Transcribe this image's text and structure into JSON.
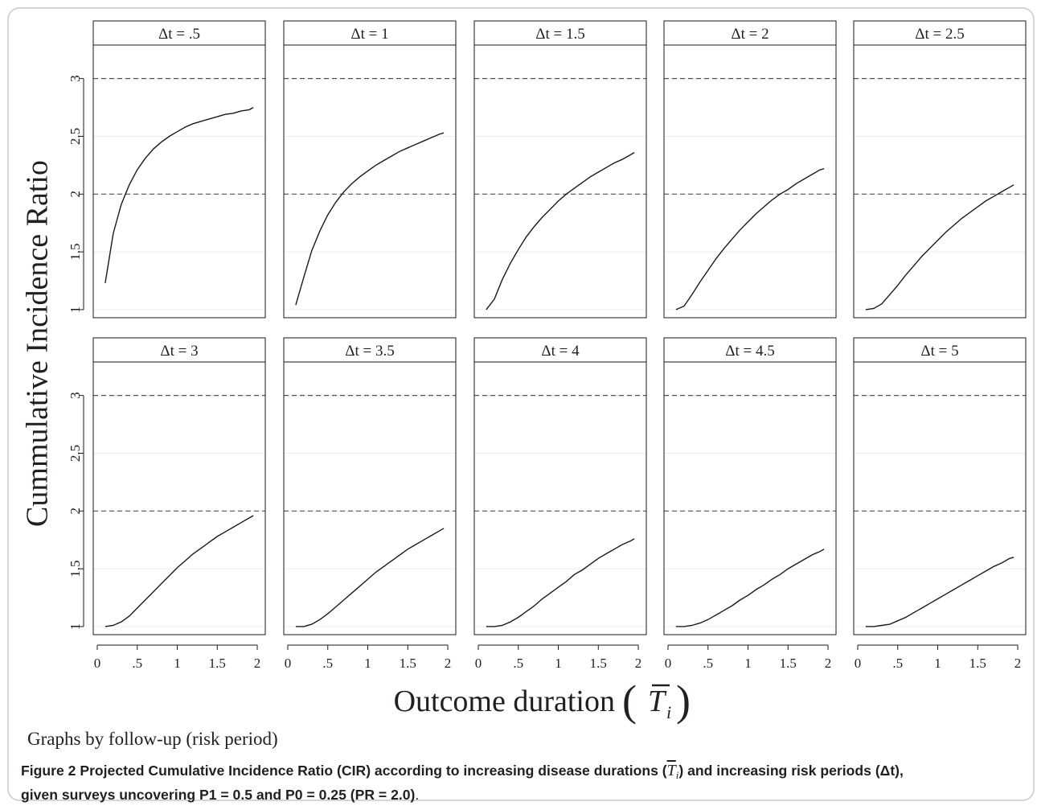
{
  "chart_data": {
    "type": "line",
    "facet_by": "follow-up (risk period)",
    "ylabel": "Cummulative Incidence Ratio",
    "xlabel": "Outcome duration",
    "xlabel_symbol": "T",
    "xlabel_subscript": "i",
    "note": "Graphs by follow-up (risk period)",
    "xticks": [
      "0",
      ".5",
      "1",
      "1.5",
      "2"
    ],
    "xtick_values": [
      0,
      0.5,
      1,
      1.5,
      2
    ],
    "yticks": [
      "1",
      "1.5",
      "2",
      "2.5",
      "3"
    ],
    "ytick_values": [
      1,
      1.5,
      2,
      2.5,
      3
    ],
    "xlim": [
      -0.05,
      2.1
    ],
    "ylim": [
      0.93,
      3.29
    ],
    "reference_lines": [
      2,
      3
    ],
    "grid": true,
    "panels": [
      {
        "title": "Δt = .5",
        "x": [
          0.1,
          0.2,
          0.3,
          0.4,
          0.5,
          0.6,
          0.7,
          0.8,
          0.9,
          1.0,
          1.1,
          1.2,
          1.3,
          1.4,
          1.5,
          1.6,
          1.7,
          1.8,
          1.9,
          1.95
        ],
        "y": [
          1.23,
          1.66,
          1.91,
          2.08,
          2.21,
          2.31,
          2.39,
          2.45,
          2.5,
          2.54,
          2.58,
          2.61,
          2.63,
          2.65,
          2.67,
          2.69,
          2.7,
          2.72,
          2.73,
          2.75
        ]
      },
      {
        "title": "Δt = 1",
        "x": [
          0.1,
          0.2,
          0.3,
          0.4,
          0.5,
          0.6,
          0.7,
          0.8,
          0.9,
          1.0,
          1.1,
          1.2,
          1.3,
          1.4,
          1.5,
          1.6,
          1.7,
          1.8,
          1.9,
          1.95
        ],
        "y": [
          1.04,
          1.28,
          1.51,
          1.68,
          1.82,
          1.93,
          2.02,
          2.09,
          2.15,
          2.2,
          2.25,
          2.29,
          2.33,
          2.37,
          2.4,
          2.43,
          2.46,
          2.49,
          2.52,
          2.53
        ]
      },
      {
        "title": "Δt = 1.5",
        "x": [
          0.1,
          0.2,
          0.3,
          0.4,
          0.5,
          0.6,
          0.7,
          0.8,
          0.9,
          1.0,
          1.1,
          1.2,
          1.3,
          1.4,
          1.5,
          1.6,
          1.7,
          1.8,
          1.9,
          1.95
        ],
        "y": [
          1.0,
          1.09,
          1.26,
          1.4,
          1.52,
          1.63,
          1.72,
          1.8,
          1.87,
          1.94,
          2.0,
          2.05,
          2.1,
          2.15,
          2.19,
          2.23,
          2.27,
          2.3,
          2.34,
          2.36
        ]
      },
      {
        "title": "Δt = 2",
        "x": [
          0.1,
          0.2,
          0.3,
          0.4,
          0.5,
          0.6,
          0.7,
          0.8,
          0.9,
          1.0,
          1.1,
          1.2,
          1.3,
          1.4,
          1.5,
          1.6,
          1.7,
          1.8,
          1.9,
          1.95
        ],
        "y": [
          1.0,
          1.03,
          1.13,
          1.24,
          1.34,
          1.44,
          1.53,
          1.61,
          1.69,
          1.76,
          1.83,
          1.89,
          1.95,
          2.0,
          2.04,
          2.09,
          2.13,
          2.17,
          2.21,
          2.22
        ]
      },
      {
        "title": "Δt = 2.5",
        "x": [
          0.1,
          0.2,
          0.3,
          0.4,
          0.5,
          0.6,
          0.7,
          0.8,
          0.9,
          1.0,
          1.1,
          1.2,
          1.3,
          1.4,
          1.5,
          1.6,
          1.7,
          1.8,
          1.9,
          1.95
        ],
        "y": [
          1.0,
          1.01,
          1.05,
          1.13,
          1.21,
          1.3,
          1.38,
          1.46,
          1.53,
          1.6,
          1.67,
          1.73,
          1.79,
          1.84,
          1.89,
          1.94,
          1.98,
          2.02,
          2.06,
          2.08
        ]
      },
      {
        "title": "Δt = 3",
        "x": [
          0.1,
          0.2,
          0.3,
          0.4,
          0.5,
          0.6,
          0.7,
          0.8,
          0.9,
          1.0,
          1.1,
          1.2,
          1.3,
          1.4,
          1.5,
          1.6,
          1.7,
          1.8,
          1.9,
          1.95
        ],
        "y": [
          1.0,
          1.01,
          1.04,
          1.09,
          1.16,
          1.23,
          1.3,
          1.37,
          1.44,
          1.51,
          1.57,
          1.63,
          1.68,
          1.73,
          1.78,
          1.82,
          1.86,
          1.9,
          1.94,
          1.96
        ]
      },
      {
        "title": "Δt = 3.5",
        "x": [
          0.1,
          0.2,
          0.3,
          0.4,
          0.5,
          0.6,
          0.7,
          0.8,
          0.9,
          1.0,
          1.1,
          1.2,
          1.3,
          1.4,
          1.5,
          1.6,
          1.7,
          1.8,
          1.9,
          1.95
        ],
        "y": [
          1.0,
          1.0,
          1.02,
          1.06,
          1.11,
          1.17,
          1.23,
          1.29,
          1.35,
          1.41,
          1.47,
          1.52,
          1.57,
          1.62,
          1.67,
          1.71,
          1.75,
          1.79,
          1.83,
          1.85
        ]
      },
      {
        "title": "Δt = 4",
        "x": [
          0.1,
          0.2,
          0.3,
          0.4,
          0.5,
          0.6,
          0.7,
          0.8,
          0.9,
          1.0,
          1.1,
          1.2,
          1.3,
          1.4,
          1.5,
          1.6,
          1.7,
          1.8,
          1.9,
          1.95
        ],
        "y": [
          1.0,
          1.0,
          1.01,
          1.04,
          1.08,
          1.13,
          1.18,
          1.24,
          1.29,
          1.34,
          1.39,
          1.45,
          1.49,
          1.54,
          1.59,
          1.63,
          1.67,
          1.71,
          1.74,
          1.76
        ]
      },
      {
        "title": "Δt = 4.5",
        "x": [
          0.1,
          0.2,
          0.3,
          0.4,
          0.5,
          0.6,
          0.7,
          0.8,
          0.9,
          1.0,
          1.1,
          1.2,
          1.3,
          1.4,
          1.5,
          1.6,
          1.7,
          1.8,
          1.9,
          1.95
        ],
        "y": [
          1.0,
          1.0,
          1.01,
          1.03,
          1.06,
          1.1,
          1.14,
          1.18,
          1.23,
          1.27,
          1.32,
          1.36,
          1.41,
          1.45,
          1.5,
          1.54,
          1.58,
          1.62,
          1.65,
          1.67
        ]
      },
      {
        "title": "Δt = 5",
        "x": [
          0.1,
          0.2,
          0.3,
          0.4,
          0.5,
          0.6,
          0.7,
          0.8,
          0.9,
          1.0,
          1.1,
          1.2,
          1.3,
          1.4,
          1.5,
          1.6,
          1.7,
          1.8,
          1.9,
          1.95
        ],
        "y": [
          1.0,
          1.0,
          1.01,
          1.02,
          1.05,
          1.08,
          1.12,
          1.16,
          1.2,
          1.24,
          1.28,
          1.32,
          1.36,
          1.4,
          1.44,
          1.48,
          1.52,
          1.55,
          1.59,
          1.6
        ]
      }
    ]
  },
  "caption": {
    "lead": "Figure 2",
    "text1": "Projected Cumulative Incidence Ratio (CIR) according to increasing disease durations (",
    "symbol": "T",
    "symbol_sub": "i",
    "text2": ") and increasing risk periods (Δt),",
    "text3": "given surveys uncovering P1 = 0.5 and P0 = 0.25 (PR = 2.0)",
    "text3_end": "."
  },
  "colors": {
    "frame": "#c8c8c8",
    "axis": "#1a1a1a",
    "curve": "#1a1a1a",
    "reference": "#555555",
    "grid": "#e8eef0",
    "text": "#231f20"
  }
}
